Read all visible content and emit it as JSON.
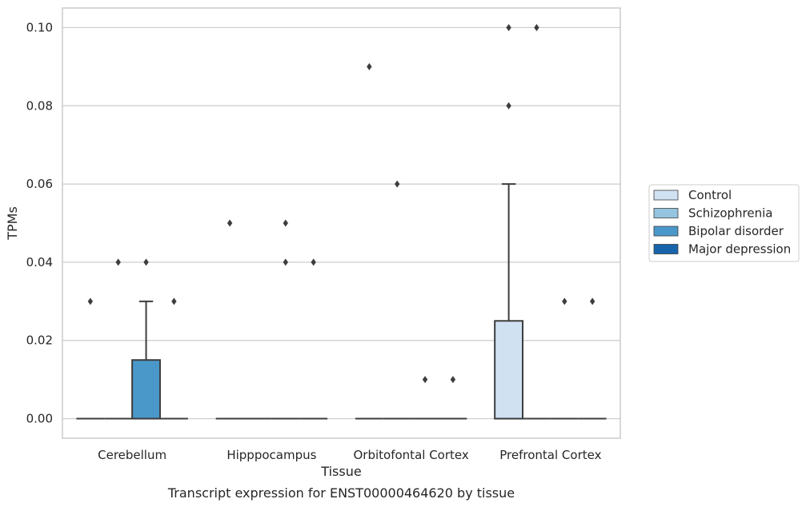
{
  "chart_data": {
    "type": "box",
    "title": "",
    "xlabel": "Tissue",
    "ylabel": "TPMs",
    "caption": "Transcript expression for ENST00000464620 by tissue",
    "categories": [
      "Cerebellum",
      "Hipppocampus",
      "Orbitofontal Cortex",
      "Prefrontal Cortex"
    ],
    "ylim": [
      -0.005,
      0.105
    ],
    "yticks": [
      0.0,
      0.02,
      0.04,
      0.06,
      0.08,
      0.1
    ],
    "ytick_labels": [
      "0.00",
      "0.02",
      "0.04",
      "0.06",
      "0.08",
      "0.10"
    ],
    "grid": true,
    "legend_position": "right",
    "series": [
      {
        "name": "Control",
        "color": "#d0e1f2",
        "boxes": [
          {
            "q1": 0,
            "median": 0,
            "q3": 0,
            "whisker_low": 0,
            "whisker_high": 0,
            "outliers": [
              0.03
            ]
          },
          {
            "q1": 0,
            "median": 0,
            "q3": 0,
            "whisker_low": 0,
            "whisker_high": 0,
            "outliers": [
              0.05
            ]
          },
          {
            "q1": 0,
            "median": 0,
            "q3": 0,
            "whisker_low": 0,
            "whisker_high": 0,
            "outliers": [
              0.09
            ]
          },
          {
            "q1": 0,
            "median": 0,
            "q3": 0.025,
            "whisker_low": 0,
            "whisker_high": 0.06,
            "outliers": [
              0.08,
              0.1
            ]
          }
        ]
      },
      {
        "name": "Schizophrenia",
        "color": "#94c4df",
        "boxes": [
          {
            "q1": 0,
            "median": 0,
            "q3": 0,
            "whisker_low": 0,
            "whisker_high": 0,
            "outliers": [
              0.04
            ]
          },
          {
            "q1": 0,
            "median": 0,
            "q3": 0,
            "whisker_low": 0,
            "whisker_high": 0,
            "outliers": []
          },
          {
            "q1": 0,
            "median": 0,
            "q3": 0,
            "whisker_low": 0,
            "whisker_high": 0,
            "outliers": [
              0.06
            ]
          },
          {
            "q1": 0,
            "median": 0,
            "q3": 0,
            "whisker_low": 0,
            "whisker_high": 0,
            "outliers": [
              0.1
            ]
          }
        ]
      },
      {
        "name": "Bipolar disorder",
        "color": "#4a98c9",
        "boxes": [
          {
            "q1": 0,
            "median": 0,
            "q3": 0.015,
            "whisker_low": 0,
            "whisker_high": 0.03,
            "outliers": [
              0.04
            ]
          },
          {
            "q1": 0,
            "median": 0,
            "q3": 0,
            "whisker_low": 0,
            "whisker_high": 0,
            "outliers": [
              0.05,
              0.04
            ]
          },
          {
            "q1": 0,
            "median": 0,
            "q3": 0,
            "whisker_low": 0,
            "whisker_high": 0,
            "outliers": [
              0.01
            ]
          },
          {
            "q1": 0,
            "median": 0,
            "q3": 0,
            "whisker_low": 0,
            "whisker_high": 0,
            "outliers": [
              0.03
            ]
          }
        ]
      },
      {
        "name": "Major depression",
        "color": "#1764ab",
        "boxes": [
          {
            "q1": 0,
            "median": 0,
            "q3": 0,
            "whisker_low": 0,
            "whisker_high": 0,
            "outliers": [
              0.03
            ]
          },
          {
            "q1": 0,
            "median": 0,
            "q3": 0,
            "whisker_low": 0,
            "whisker_high": 0,
            "outliers": [
              0.04
            ]
          },
          {
            "q1": 0,
            "median": 0,
            "q3": 0,
            "whisker_low": 0,
            "whisker_high": 0,
            "outliers": [
              0.01
            ]
          },
          {
            "q1": 0,
            "median": 0,
            "q3": 0,
            "whisker_low": 0,
            "whisker_high": 0,
            "outliers": [
              0.03
            ]
          }
        ]
      }
    ]
  }
}
